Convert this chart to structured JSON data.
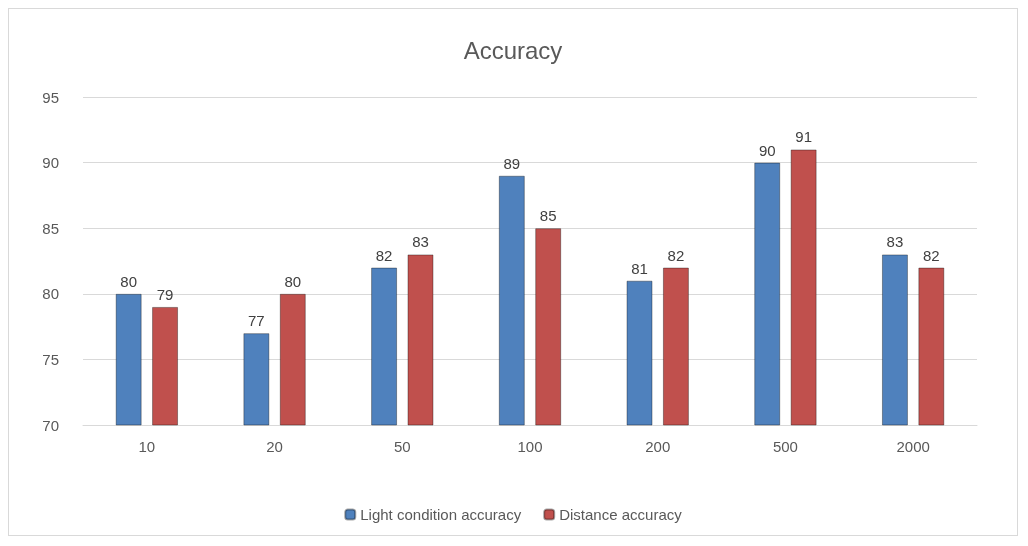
{
  "chart_data": {
    "type": "bar",
    "title": "Accuracy",
    "categories": [
      "10",
      "20",
      "50",
      "100",
      "200",
      "500",
      "2000"
    ],
    "series": [
      {
        "name": "Light condition accuracy",
        "color": "#4f81bd",
        "values": [
          80,
          77,
          82,
          89,
          81,
          90,
          83
        ]
      },
      {
        "name": "Distance accuracy",
        "color": "#c0504d",
        "values": [
          79,
          80,
          83,
          85,
          82,
          91,
          82
        ]
      }
    ],
    "ylim": [
      70,
      95
    ],
    "yticks": [
      70,
      75,
      80,
      85,
      90,
      95
    ],
    "grid": "y",
    "legend": "bottom",
    "data_labels": true
  }
}
